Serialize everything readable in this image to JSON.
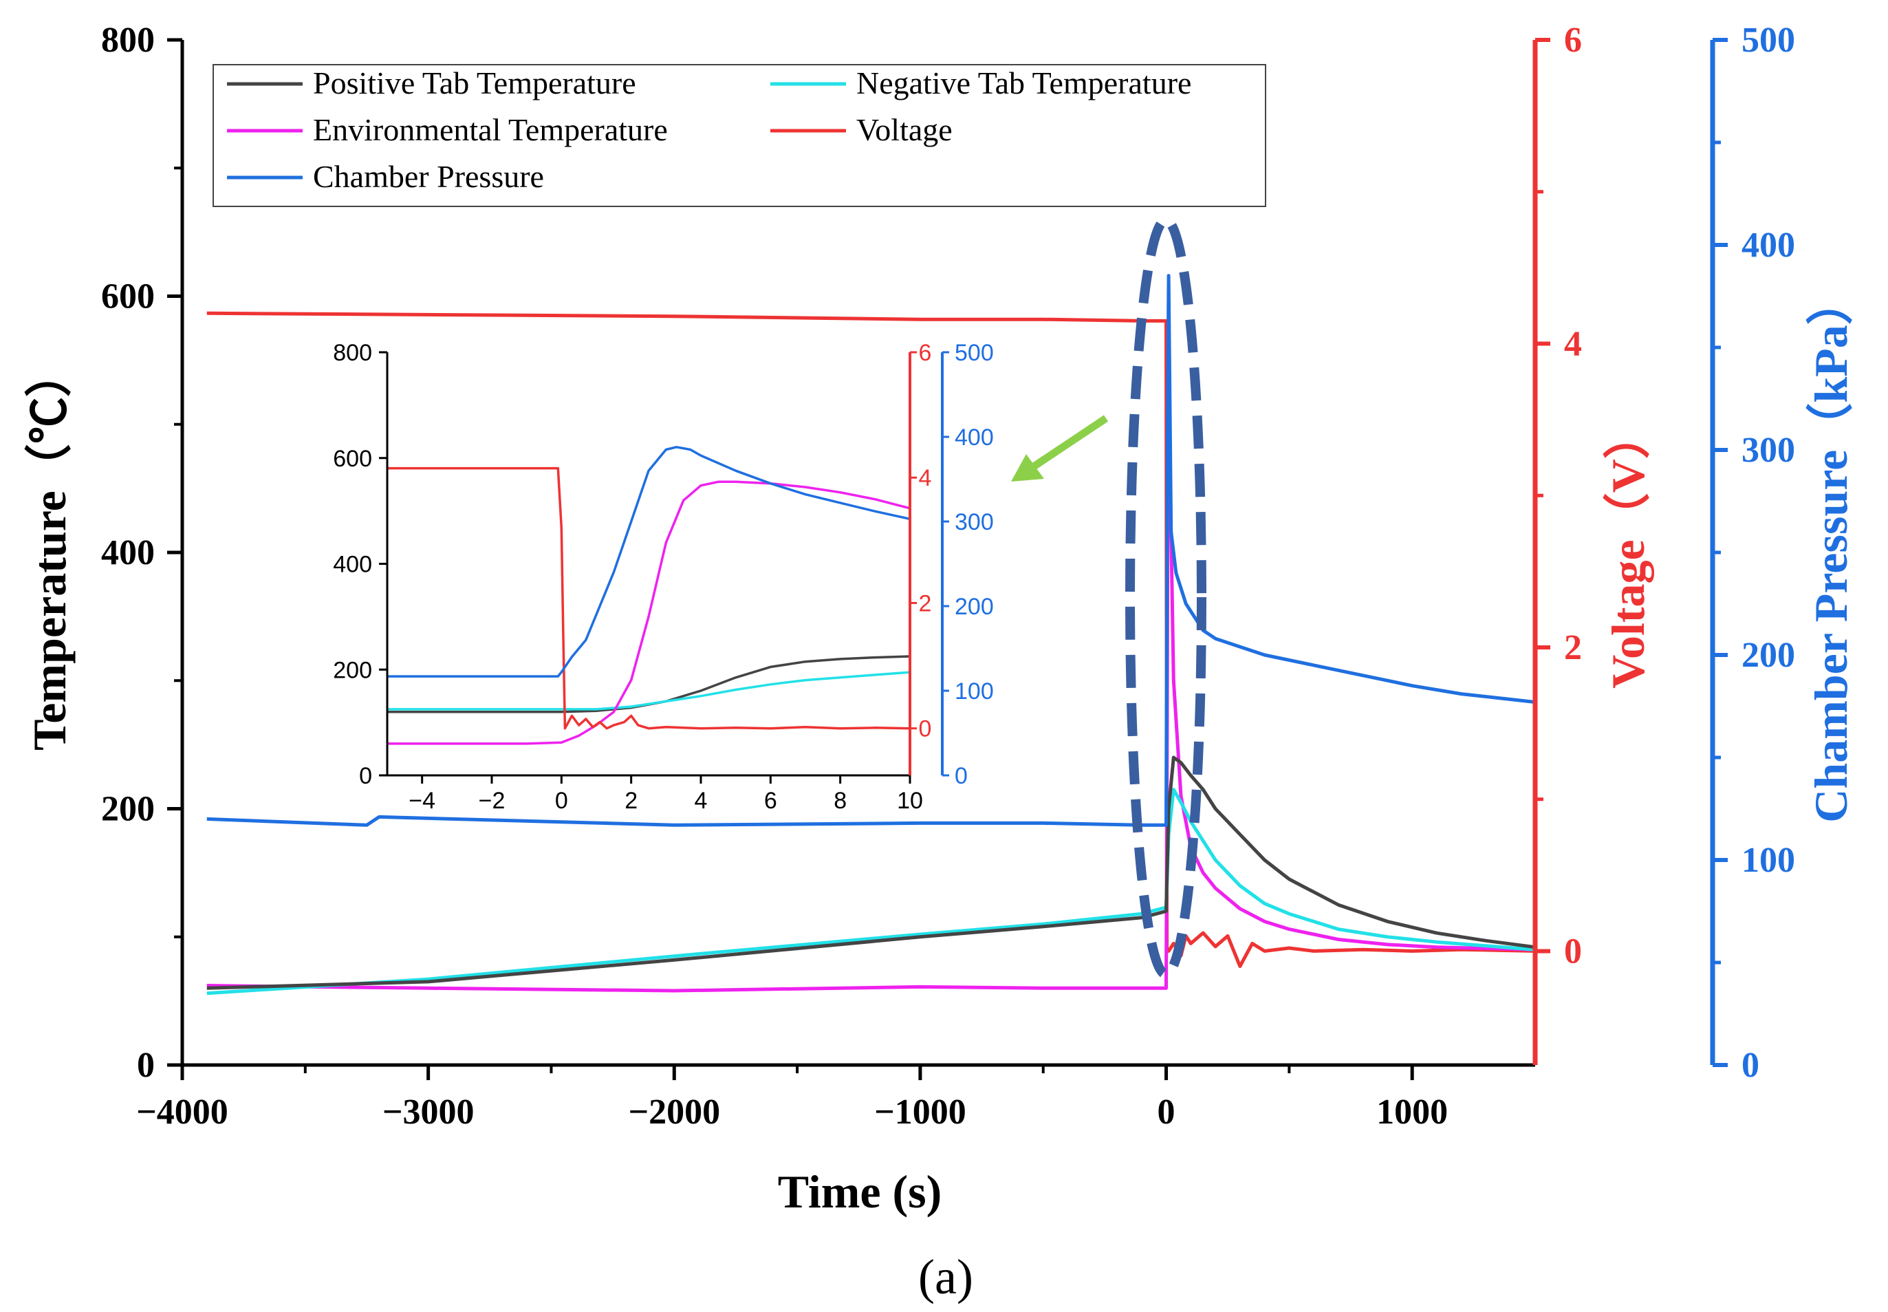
{
  "caption": "(a)",
  "chart_data": {
    "type": "line",
    "xlabel": "Time (s)",
    "xlim": [
      -4000,
      1500
    ],
    "xticks": [
      -4000,
      -3000,
      -2000,
      -1000,
      0,
      1000
    ],
    "xtick_labels": [
      "−4000",
      "−3000",
      "−2000",
      "−1000",
      "0",
      "1000"
    ],
    "axes": {
      "temperature": {
        "label": "Temperature（℃）",
        "lim": [
          0,
          800
        ],
        "ticks": [
          0,
          200,
          400,
          600,
          800
        ],
        "color": "#000000"
      },
      "voltage": {
        "label": "Voltage（V）",
        "lim": [
          -0.75,
          6
        ],
        "ticks": [
          0,
          2,
          4,
          6
        ],
        "color": "#ee3333"
      },
      "pressure": {
        "label": "Chamber Pressure（kPa）",
        "lim": [
          0,
          500
        ],
        "ticks": [
          0,
          100,
          200,
          300,
          400,
          500
        ],
        "color": "#1f6fe0"
      }
    },
    "series": [
      {
        "name": "Positive Tab Temperature",
        "axis": "temperature",
        "color": "#444444",
        "x": [
          -3900,
          -3000,
          -2000,
          -1000,
          -500,
          -100,
          0,
          10,
          30,
          60,
          100,
          150,
          200,
          300,
          400,
          500,
          700,
          900,
          1100,
          1300,
          1500
        ],
        "y": [
          60,
          65,
          82,
          100,
          108,
          115,
          120,
          200,
          240,
          236,
          226,
          215,
          200,
          180,
          160,
          145,
          125,
          112,
          103,
          97,
          92
        ]
      },
      {
        "name": "Negative Tab Temperature",
        "axis": "temperature",
        "color": "#22e0e8",
        "x": [
          -3900,
          -3000,
          -2000,
          -1000,
          -500,
          -100,
          0,
          10,
          30,
          60,
          100,
          150,
          200,
          300,
          400,
          500,
          700,
          900,
          1100,
          1300,
          1500
        ],
        "y": [
          56,
          67,
          85,
          102,
          110,
          118,
          123,
          180,
          215,
          205,
          190,
          175,
          160,
          140,
          126,
          118,
          106,
          100,
          96,
          93,
          90
        ]
      },
      {
        "name": "Environmental Temperature",
        "axis": "temperature",
        "color": "#ee22ee",
        "x": [
          -3900,
          -3000,
          -2000,
          -1000,
          -500,
          -100,
          0,
          3,
          8,
          15,
          30,
          60,
          100,
          150,
          200,
          300,
          400,
          500,
          700,
          900,
          1100,
          1300,
          1500
        ],
        "y": [
          62,
          60,
          58,
          61,
          60,
          60,
          60,
          200,
          540,
          470,
          300,
          210,
          170,
          150,
          138,
          122,
          112,
          106,
          98,
          94,
          92,
          91,
          90
        ]
      },
      {
        "name": "Voltage",
        "axis": "voltage",
        "color": "#ee3333",
        "x": [
          -3900,
          -2000,
          -1000,
          -500,
          -100,
          0,
          3,
          10,
          30,
          60,
          80,
          100,
          150,
          200,
          250,
          300,
          350,
          400,
          500,
          600,
          800,
          1000,
          1200,
          1500
        ],
        "y": [
          4.2,
          4.18,
          4.16,
          4.16,
          4.15,
          4.15,
          0.0,
          0.0,
          0.05,
          -0.03,
          0.1,
          0.05,
          0.12,
          0.03,
          0.1,
          -0.1,
          0.05,
          0.0,
          0.02,
          0.0,
          0.01,
          0.0,
          0.01,
          0.0
        ]
      },
      {
        "name": "Chamber Pressure",
        "axis": "pressure",
        "color": "#1f6fe0",
        "x": [
          -3900,
          -3250,
          -3200,
          -2000,
          -1000,
          -500,
          -100,
          0,
          5,
          10,
          20,
          40,
          80,
          150,
          200,
          400,
          600,
          800,
          1000,
          1200,
          1500
        ],
        "y": [
          120,
          117,
          121,
          117,
          118,
          118,
          117,
          117,
          300,
          385,
          260,
          240,
          225,
          212,
          208,
          200,
          195,
          190,
          185,
          181,
          177
        ]
      }
    ],
    "legend": [
      "Positive Tab Temperature",
      "Negative Tab Temperature",
      "Environmental Temperature",
      "Voltage",
      "Chamber Pressure"
    ],
    "legend_position": "top-left",
    "annotation": "dashed ellipse highlighting thermal runaway region near t = 0",
    "inset": {
      "xlim": [
        -5,
        10
      ],
      "xticks": [
        -4,
        -2,
        0,
        2,
        4,
        6,
        8,
        10
      ],
      "xtick_labels": [
        "−4",
        "−2",
        "0",
        "2",
        "4",
        "6",
        "8",
        "10"
      ],
      "temperature_ticks": [
        0,
        200,
        400,
        600,
        800
      ],
      "voltage_ticks": [
        0,
        2,
        4,
        6
      ],
      "pressure_ticks": [
        0,
        100,
        200,
        300,
        400,
        500
      ],
      "series": [
        {
          "name": "Positive Tab Temperature",
          "axis": "temperature",
          "color": "#444444",
          "x": [
            -5,
            -1,
            0,
            1,
            2,
            3,
            4,
            5,
            6,
            7,
            8,
            9,
            10
          ],
          "y": [
            120,
            120,
            120,
            122,
            128,
            140,
            160,
            185,
            205,
            215,
            220,
            223,
            225
          ]
        },
        {
          "name": "Negative Tab Temperature",
          "axis": "temperature",
          "color": "#22e0e8",
          "x": [
            -5,
            -1,
            0,
            1,
            2,
            3,
            4,
            5,
            6,
            7,
            8,
            9,
            10
          ],
          "y": [
            125,
            125,
            125,
            125,
            130,
            140,
            150,
            162,
            172,
            180,
            185,
            190,
            195
          ]
        },
        {
          "name": "Environmental Temperature",
          "axis": "temperature",
          "color": "#ee22ee",
          "x": [
            -5,
            -1,
            0,
            0.5,
            1,
            1.5,
            2,
            2.5,
            3,
            3.5,
            4,
            4.5,
            5,
            6,
            7,
            8,
            9,
            10
          ],
          "y": [
            60,
            60,
            62,
            75,
            95,
            120,
            180,
            300,
            440,
            520,
            548,
            555,
            555,
            552,
            545,
            535,
            522,
            505
          ]
        },
        {
          "name": "Voltage",
          "axis": "voltage",
          "color": "#ee3333",
          "x": [
            -5,
            -0.1,
            0,
            0.05,
            0.1,
            0.3,
            0.5,
            0.7,
            0.9,
            1.1,
            1.3,
            1.5,
            1.8,
            2.0,
            2.2,
            2.5,
            3,
            4,
            5,
            6,
            7,
            8,
            9,
            10
          ],
          "y": [
            4.15,
            4.15,
            3.2,
            1.5,
            0.0,
            0.2,
            0.05,
            0.15,
            0.02,
            0.1,
            0.0,
            0.05,
            0.1,
            0.2,
            0.05,
            0.0,
            0.02,
            0.0,
            0.01,
            0.0,
            0.02,
            0.0,
            0.01,
            0.0
          ]
        },
        {
          "name": "Chamber Pressure",
          "axis": "pressure",
          "color": "#1f6fe0",
          "x": [
            -5,
            -0.1,
            0,
            0.3,
            0.7,
            1.0,
            1.5,
            2.0,
            2.5,
            3.0,
            3.3,
            3.7,
            4.0,
            5.0,
            6.0,
            7.0,
            8.0,
            9.0,
            10.0
          ],
          "y": [
            117,
            117,
            122,
            140,
            160,
            190,
            240,
            300,
            360,
            385,
            388,
            385,
            378,
            360,
            345,
            332,
            322,
            312,
            303
          ]
        }
      ]
    }
  }
}
